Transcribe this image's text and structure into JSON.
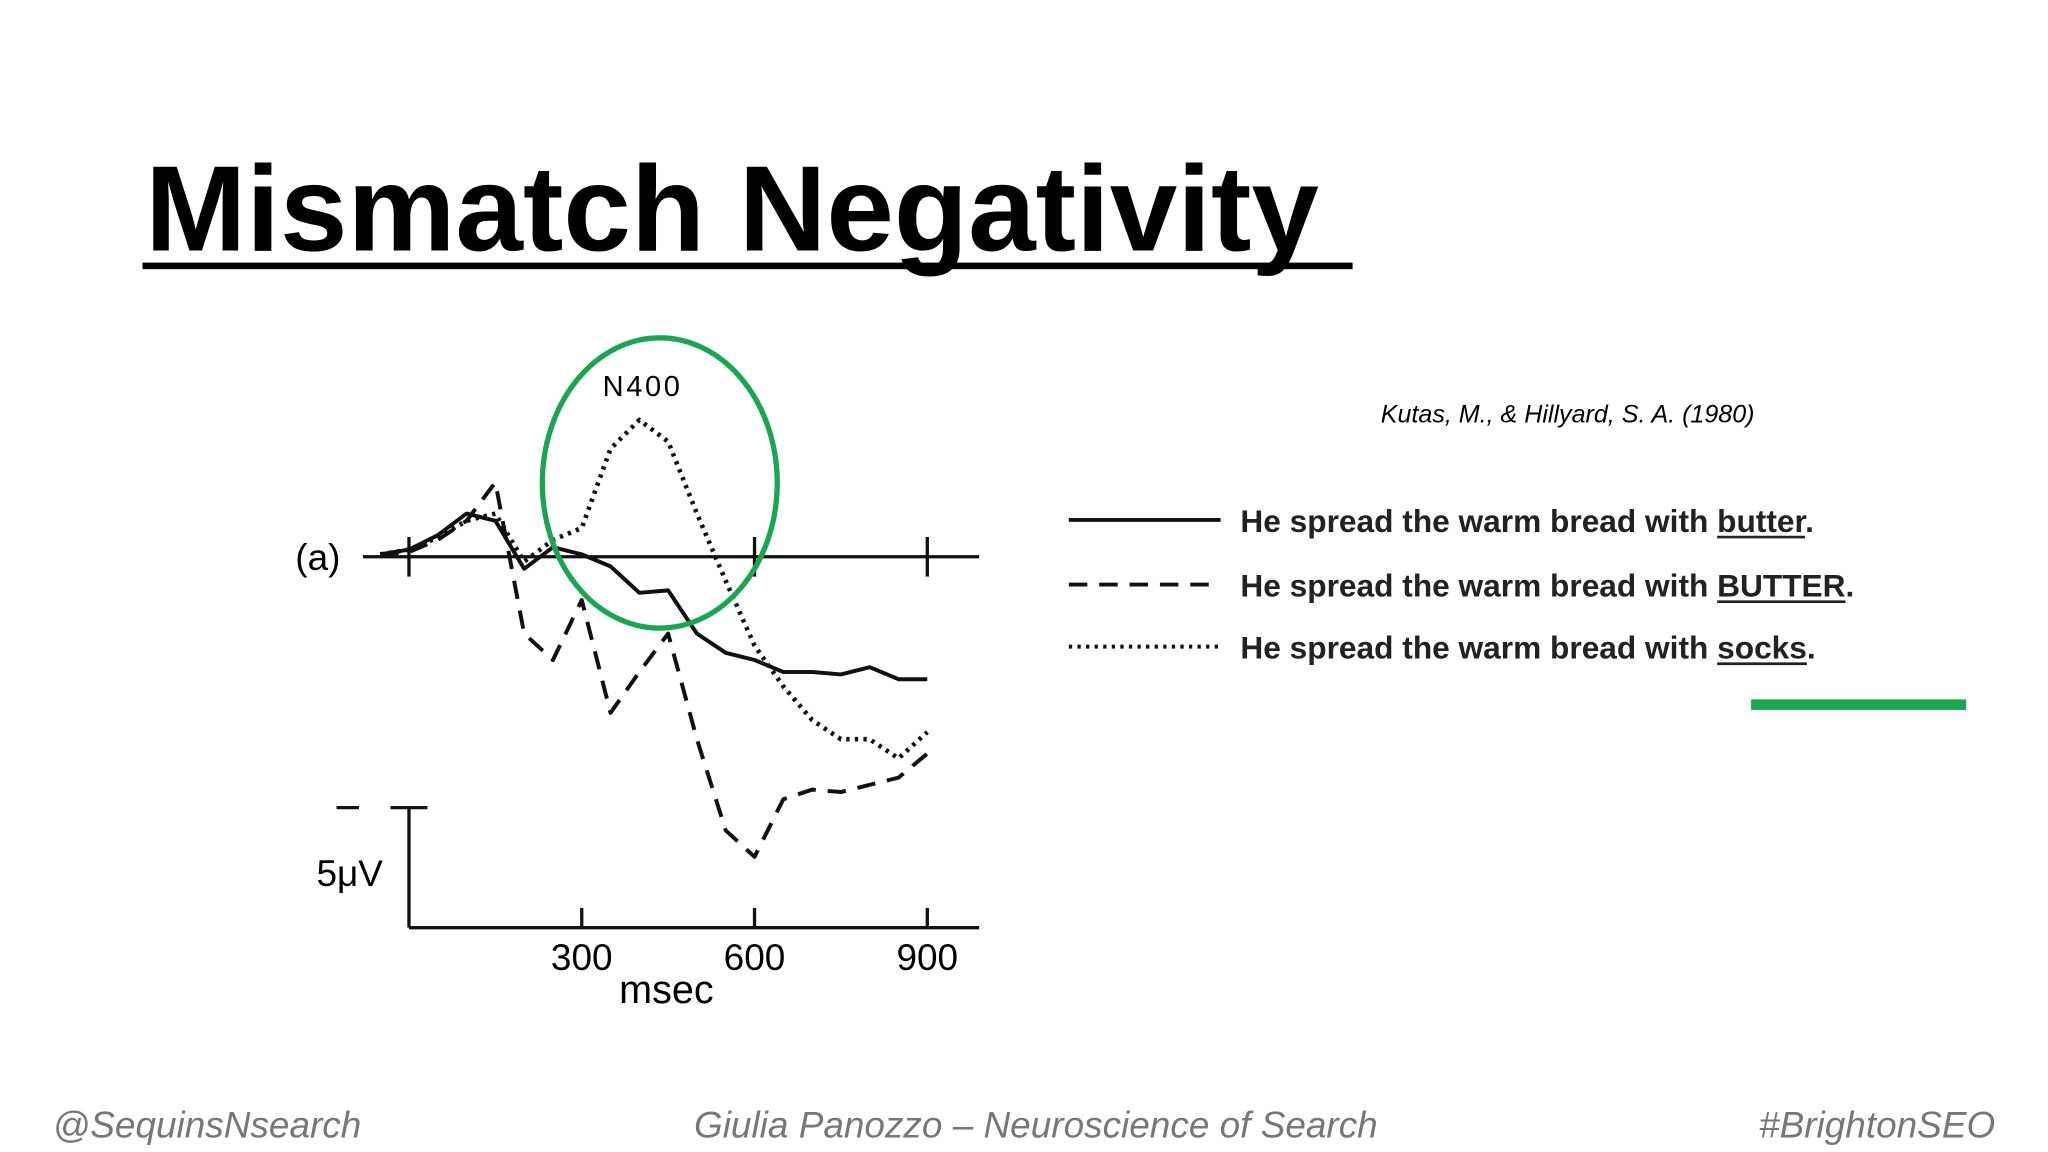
{
  "header": {
    "title": "Mismatch Negativity"
  },
  "citation": "Kutas, M., & Hillyard, S. A. (1980)",
  "chart_data": {
    "type": "line",
    "panel_label": "(a)",
    "annotation": "N400",
    "x_label": "msec",
    "x": [
      -50,
      0,
      50,
      100,
      150,
      200,
      250,
      300,
      350,
      400,
      450,
      500,
      550,
      600,
      650,
      700,
      750,
      800,
      850,
      900
    ],
    "xlim": [
      -80,
      990
    ],
    "xticks": [
      300,
      600,
      900
    ],
    "baseline_ticks": [
      0,
      600,
      900
    ],
    "ylim": [
      -7,
      16
    ],
    "y_inverted": true,
    "scale_bar": {
      "value": 5,
      "label": "5μV"
    },
    "series": [
      {
        "name": "He spread the warm bread with butter.",
        "color": "#111",
        "style": "solid",
        "values": [
          -0.1,
          -0.3,
          -0.9,
          -1.8,
          -1.5,
          0.5,
          -0.4,
          -0.1,
          0.4,
          1.5,
          1.4,
          3.2,
          4.0,
          4.3,
          4.8,
          4.8,
          4.9,
          4.6,
          5.1,
          5.1
        ]
      },
      {
        "name": "He spread the warm bread with BUTTER.",
        "color": "#111",
        "style": "dashed",
        "values": [
          -0.1,
          -0.2,
          -0.7,
          -1.5,
          -3.1,
          3.2,
          4.3,
          1.8,
          6.5,
          4.8,
          3.2,
          7.6,
          11.4,
          12.5,
          10.1,
          9.7,
          9.8,
          9.5,
          9.2,
          8.2
        ]
      },
      {
        "name": "He spread the warm bread with socks.",
        "color": "#111",
        "style": "dotted",
        "values": [
          -0.1,
          -0.3,
          -0.8,
          -1.5,
          -1.8,
          0.2,
          -0.7,
          -1.2,
          -4.5,
          -5.7,
          -4.8,
          -1.8,
          1.0,
          3.7,
          5.4,
          6.8,
          7.6,
          7.6,
          8.4,
          7.3
        ]
      }
    ],
    "highlight_color": "#1aa550"
  },
  "footer": {
    "left": "@SequinsNsearch",
    "center": "Giulia Panozzo – Neuroscience of Search",
    "right": "#BrightonSEO"
  }
}
